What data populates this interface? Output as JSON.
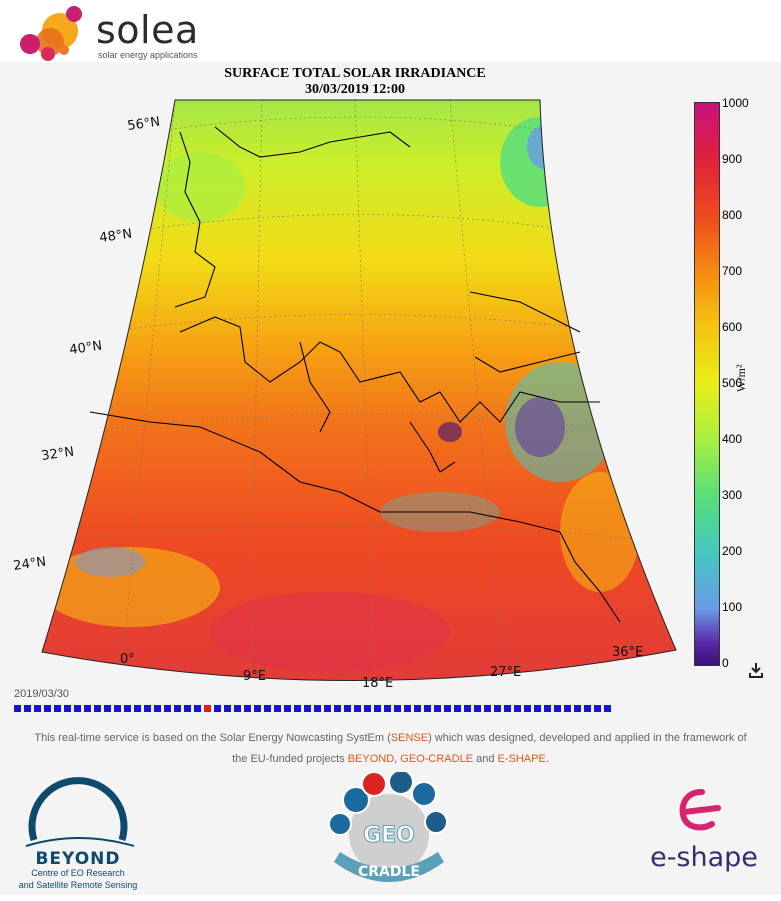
{
  "brand": {
    "name": "solea",
    "tagline": "solar energy applications"
  },
  "map": {
    "title_line1": "SURFACE TOTAL SOLAR IRRADIANCE",
    "title_line2": "30/03/2019  12:00",
    "lat_labels": [
      "56°N",
      "48°N",
      "40°N",
      "32°N",
      "24°N"
    ],
    "lon_labels": [
      "0°",
      "9°E",
      "18°E",
      "27°E",
      "36°E"
    ]
  },
  "colorbar": {
    "ticks": [
      "1000",
      "900",
      "800",
      "700",
      "600",
      "500",
      "400",
      "300",
      "200",
      "100",
      "0"
    ],
    "unit": "W/m²",
    "colors": [
      "#c8137e",
      "#ee4a1e",
      "#f58a12",
      "#f5c510",
      "#e8ef18",
      "#58de7a",
      "#6a9ae8",
      "#3a0f78"
    ]
  },
  "timeline": {
    "date": "2019/03/30",
    "steps": 60,
    "active_index": 19,
    "step_color": "#1515d8",
    "active_color": "#e21b1b"
  },
  "description": {
    "part1": "This real-time service is based on the Solar Energy Nowcasting SystEm (",
    "sense": "SENSE",
    "part2": ") which was designed, developed and applied in the framework of",
    "part3": "the EU-funded projects ",
    "beyond": "BEYOND",
    "sep1": ", ",
    "geocradle": "GEO-CRADLE",
    "sep2": " and ",
    "eshape": "E-SHAPE",
    "end": "."
  },
  "footer": {
    "beyond": {
      "name": "BEYOND",
      "line1": "Centre of EO Research",
      "line2": "and Satellite Remote Sensing"
    },
    "geocradle": {
      "name_top": "GEO",
      "name_bottom": "CRADLE"
    },
    "eshape": {
      "name": "e-shape"
    }
  }
}
